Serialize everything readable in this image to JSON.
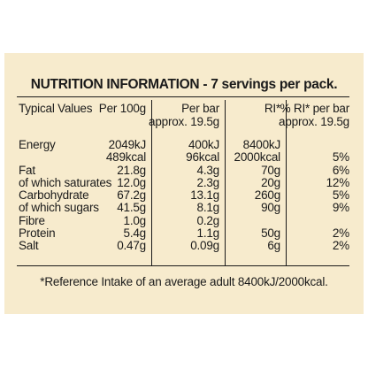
{
  "title": "NUTRITION INFORMATION - 7 servings per pack.",
  "headers": {
    "col1": "Typical Values",
    "col2": "Per 100g",
    "col3_line1": "Per bar",
    "col3_line2": "approx. 19.5g",
    "col4": "RI*",
    "col5_line1": "% RI* per bar",
    "col5_line2": "approx. 19.5g"
  },
  "rows": [
    {
      "name": "Energy",
      "per100": "2049kJ",
      "perbar": "400kJ",
      "ri": "8400kJ",
      "pct": ""
    },
    {
      "name": "",
      "per100": "489kcal",
      "perbar": "96kcal",
      "ri": "2000kcal",
      "pct": "5%"
    },
    {
      "name": "Fat",
      "per100": "21.8g",
      "perbar": "4.3g",
      "ri": "70g",
      "pct": "6%"
    },
    {
      "name": "of which saturates",
      "per100": "12.0g",
      "perbar": "2.3g",
      "ri": "20g",
      "pct": "12%"
    },
    {
      "name": "Carbohydrate",
      "per100": "67.2g",
      "perbar": "13.1g",
      "ri": "260g",
      "pct": "5%"
    },
    {
      "name": "of which sugars",
      "per100": "41.5g",
      "perbar": "8.1g",
      "ri": "90g",
      "pct": "9%"
    },
    {
      "name": "Fibre",
      "per100": "1.0g",
      "perbar": "0.2g",
      "ri": "",
      "pct": ""
    },
    {
      "name": "Protein",
      "per100": "5.4g",
      "perbar": "1.1g",
      "ri": "50g",
      "pct": "2%"
    },
    {
      "name": "Salt",
      "per100": "0.47g",
      "perbar": "0.09g",
      "ri": "6g",
      "pct": "2%"
    }
  ],
  "footnote": "*Reference Intake of an average adult 8400kJ/2000kcal."
}
